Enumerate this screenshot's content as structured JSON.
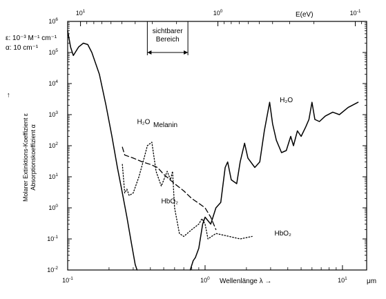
{
  "chart_data": {
    "type": "line",
    "x_scale": "log",
    "y_scale": "log",
    "xlim": [
      0.1,
      15
    ],
    "ylim": [
      0.01,
      1000000
    ],
    "x_ticks": [
      {
        "value": 0.1,
        "base": "10",
        "exp": "-1"
      },
      {
        "value": 1,
        "base": "10",
        "exp": "0"
      },
      {
        "value": 10,
        "base": "10",
        "exp": "1"
      }
    ],
    "y_ticks": [
      {
        "value": 0.01,
        "base": "10",
        "exp": "-2"
      },
      {
        "value": 0.1,
        "base": "10",
        "exp": "-1"
      },
      {
        "value": 1,
        "base": "10",
        "exp": "0"
      },
      {
        "value": 10,
        "base": "10",
        "exp": "1"
      },
      {
        "value": 100,
        "base": "10",
        "exp": "2"
      },
      {
        "value": 1000,
        "base": "10",
        "exp": "3"
      },
      {
        "value": 10000,
        "base": "10",
        "exp": "4"
      },
      {
        "value": 100000,
        "base": "10",
        "exp": "5"
      },
      {
        "value": 1000000,
        "base": "10",
        "exp": "6"
      }
    ],
    "top_axis": {
      "label": "E(eV)",
      "ticks": [
        {
          "wavelength_um": 0.124,
          "base": "10",
          "exp": "1"
        },
        {
          "wavelength_um": 1.24,
          "base": "10",
          "exp": "0"
        },
        {
          "wavelength_um": 12.4,
          "base": "10",
          "exp": "-1"
        }
      ]
    },
    "xlabel": "Wellenlänge λ →",
    "x_unit": "μm",
    "ylabel_line1": "Molarer Extinktions-Koeffizient ε",
    "ylabel_line2": "Absorptionskoeffizient α",
    "ylabel_arrow": "→",
    "unit_eps": "ε: 10⁻³ M⁻¹ cm⁻¹",
    "unit_alpha": "α: 10 cm⁻¹",
    "visible_range": {
      "label_line1": "sichtbarer",
      "label_line2": "Bereich",
      "from_um": 0.38,
      "to_um": 0.75
    },
    "series": [
      {
        "name": "H₂O",
        "style": "solid",
        "segments": [
          [
            [
              0.1,
              500000
            ],
            [
              0.105,
              150000
            ],
            [
              0.11,
              80000
            ],
            [
              0.12,
              150000
            ],
            [
              0.13,
              200000
            ],
            [
              0.14,
              180000
            ],
            [
              0.15,
              100000
            ],
            [
              0.17,
              20000
            ],
            [
              0.19,
              2000
            ],
            [
              0.21,
              200
            ],
            [
              0.23,
              20
            ],
            [
              0.25,
              3
            ],
            [
              0.27,
              0.5
            ],
            [
              0.29,
              0.08
            ],
            [
              0.31,
              0.015
            ],
            [
              0.32,
              0.01
            ]
          ],
          [
            [
              0.78,
              0.01
            ],
            [
              0.82,
              0.02
            ],
            [
              0.85,
              0.025
            ],
            [
              0.9,
              0.05
            ],
            [
              0.96,
              0.3
            ],
            [
              1.0,
              0.5
            ],
            [
              1.1,
              0.3
            ],
            [
              1.2,
              1.0
            ],
            [
              1.3,
              1.5
            ],
            [
              1.4,
              20
            ],
            [
              1.46,
              30
            ],
            [
              1.55,
              8
            ],
            [
              1.7,
              6
            ],
            [
              1.8,
              30
            ],
            [
              1.94,
              120
            ],
            [
              2.05,
              40
            ],
            [
              2.3,
              20
            ],
            [
              2.5,
              30
            ],
            [
              2.7,
              300
            ],
            [
              2.95,
              2500
            ],
            [
              3.1,
              500
            ],
            [
              3.3,
              150
            ],
            [
              3.6,
              60
            ],
            [
              3.9,
              70
            ],
            [
              4.2,
              200
            ],
            [
              4.4,
              100
            ],
            [
              4.7,
              300
            ],
            [
              5.0,
              200
            ],
            [
              5.4,
              400
            ],
            [
              5.7,
              700
            ],
            [
              6.0,
              2500
            ],
            [
              6.3,
              700
            ],
            [
              6.8,
              600
            ],
            [
              7.5,
              900
            ],
            [
              8.5,
              1200
            ],
            [
              9.5,
              1000
            ],
            [
              11,
              1700
            ],
            [
              13,
              2500
            ]
          ]
        ]
      },
      {
        "name": "Melanin",
        "style": "dashed",
        "segments": [
          [
            [
              0.25,
              90
            ],
            [
              0.26,
              50
            ],
            [
              0.3,
              40
            ],
            [
              0.35,
              30
            ],
            [
              0.4,
              25
            ],
            [
              0.45,
              20
            ],
            [
              0.5,
              12
            ],
            [
              0.6,
              6
            ],
            [
              0.7,
              3.5
            ],
            [
              0.8,
              2
            ],
            [
              0.9,
              1.4
            ],
            [
              1.0,
              1.0
            ],
            [
              1.1,
              0.5
            ],
            [
              1.2,
              0.2
            ]
          ]
        ]
      },
      {
        "name": "HbO₂",
        "style": "dotted",
        "segments": [
          [
            [
              0.25,
              25
            ],
            [
              0.26,
              3
            ],
            [
              0.27,
              4
            ],
            [
              0.28,
              2.5
            ],
            [
              0.3,
              3
            ],
            [
              0.33,
              10
            ],
            [
              0.36,
              40
            ],
            [
              0.38,
              100
            ],
            [
              0.41,
              130
            ],
            [
              0.44,
              15
            ],
            [
              0.48,
              5
            ],
            [
              0.53,
              15
            ],
            [
              0.56,
              8
            ],
            [
              0.58,
              15
            ],
            [
              0.6,
              1.0
            ],
            [
              0.65,
              0.15
            ],
            [
              0.7,
              0.12
            ],
            [
              0.8,
              0.2
            ],
            [
              0.9,
              0.3
            ],
            [
              0.95,
              0.45
            ],
            [
              1.0,
              0.3
            ],
            [
              1.05,
              0.1
            ],
            [
              1.2,
              0.15
            ],
            [
              1.5,
              0.12
            ],
            [
              1.8,
              0.1
            ],
            [
              2.2,
              0.12
            ]
          ]
        ]
      }
    ],
    "annotations": [
      {
        "text": "H₂O",
        "at_um": 0.32,
        "at_val": 500
      },
      {
        "text": "H₂O",
        "at_um": 3.5,
        "at_val": 2500
      },
      {
        "text": "Melanin",
        "at_um": 0.42,
        "at_val": 400
      },
      {
        "text": "HbO₂",
        "at_um": 0.48,
        "at_val": 1.4
      },
      {
        "text": "HbO₂",
        "at_um": 3.2,
        "at_val": 0.13
      }
    ]
  }
}
